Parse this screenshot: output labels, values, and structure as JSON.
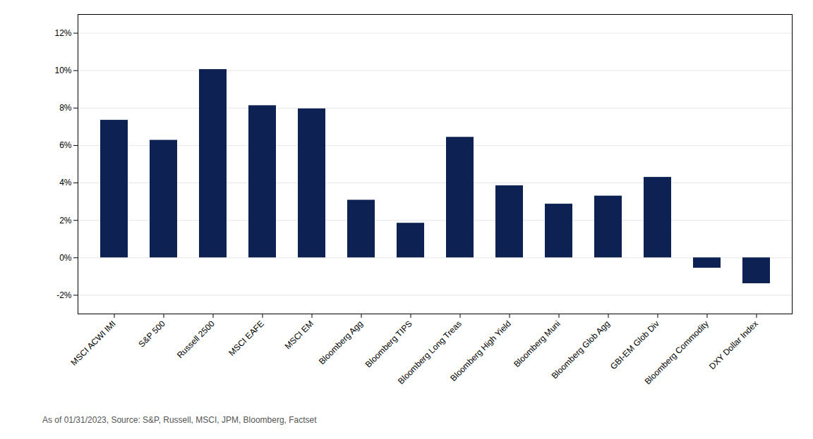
{
  "chart_data": {
    "type": "bar",
    "categories": [
      "MSCI ACWI IMI",
      "S&P 500",
      "Russell 2500",
      "MSCI EAFE",
      "MSCI EM",
      "Bloomberg Agg",
      "Bloomberg TIPS",
      "Bloomberg Long Treas",
      "Bloomberg High Yield",
      "Bloomberg Muni",
      "Bloomberg Glob Agg",
      "GBI-EM Glob Div",
      "Bloomberg Commodity",
      "DXY Dollar Index"
    ],
    "values": [
      7.35,
      6.28,
      10.06,
      8.13,
      7.96,
      3.08,
      1.85,
      6.44,
      3.85,
      2.87,
      3.3,
      4.3,
      -0.55,
      -1.38
    ],
    "color": "#0d2152",
    "ylim": [
      -3,
      13
    ],
    "yticks": [
      {
        "value": -2,
        "label": "-2%"
      },
      {
        "value": 0,
        "label": "0%"
      },
      {
        "value": 2,
        "label": "2%"
      },
      {
        "value": 4,
        "label": "4%"
      },
      {
        "value": 6,
        "label": "6%"
      },
      {
        "value": 8,
        "label": "8%"
      },
      {
        "value": 10,
        "label": "10%"
      },
      {
        "value": 12,
        "label": "12%"
      }
    ],
    "grid": true,
    "footnote": "As of 01/31/2023, Source: S&P, Russell, MSCI, JPM, Bloomberg, Factset"
  }
}
